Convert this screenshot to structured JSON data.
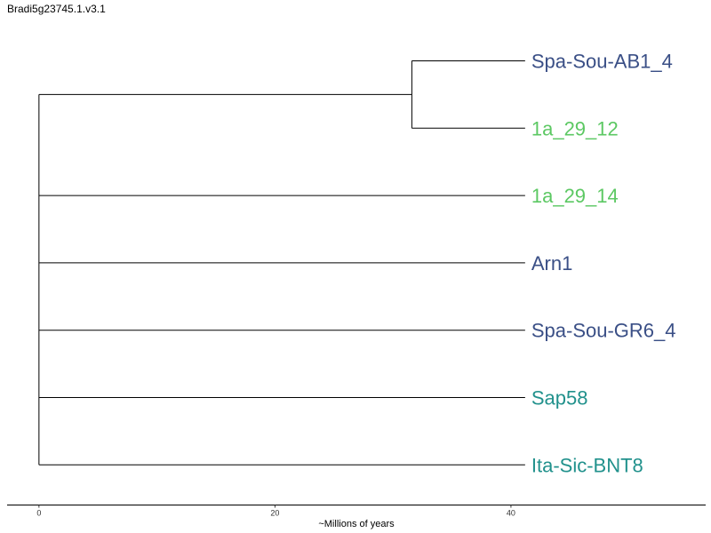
{
  "title": "Bradi5g23745.1.v3.1",
  "chart_data": {
    "type": "dendrogram",
    "xlabel": "~Millions of years",
    "xticks": [
      0,
      20,
      40
    ],
    "xlim": [
      -2.7,
      56.5
    ],
    "nodes": {
      "root": {
        "age": 0,
        "children": [
          "clade1",
          "1a_29_14",
          "Arn1",
          "Spa-Sou-GR6_4",
          "Sap58",
          "Ita-Sic-BNT8"
        ]
      },
      "clade1": {
        "age": 31.6,
        "children": [
          "Spa-Sou-AB1_4",
          "1a_29_12"
        ]
      }
    },
    "tips": [
      {
        "name": "Spa-Sou-AB1_4",
        "age": 41.2,
        "color": "#3a4f86"
      },
      {
        "name": "1a_29_12",
        "age": 41.2,
        "color": "#5cc863"
      },
      {
        "name": "1a_29_14",
        "age": 41.2,
        "color": "#5cc863"
      },
      {
        "name": "Arn1",
        "age": 41.2,
        "color": "#3a4f86"
      },
      {
        "name": "Spa-Sou-GR6_4",
        "age": 41.2,
        "color": "#3a4f86"
      },
      {
        "name": "Sap58",
        "age": 41.2,
        "color": "#21918c"
      },
      {
        "name": "Ita-Sic-BNT8",
        "age": 41.2,
        "color": "#21918c"
      }
    ]
  }
}
